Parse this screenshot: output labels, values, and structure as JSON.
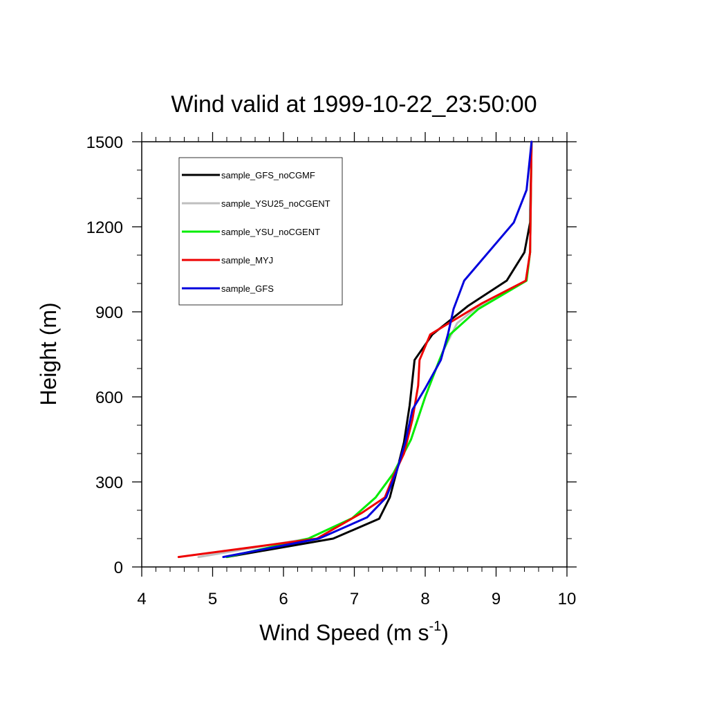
{
  "chart_data": {
    "type": "line",
    "title": "Wind valid at 1999-10-22_23:50:00",
    "xlabel": "Wind Speed (m s",
    "xlabel_sup": "-1",
    "xlabel_end": ")",
    "ylabel": "Height (m)",
    "xlim": [
      4,
      10
    ],
    "ylim": [
      0,
      1500
    ],
    "xticks": [
      4,
      5,
      6,
      7,
      8,
      9,
      10
    ],
    "yticks": [
      0,
      300,
      600,
      900,
      1200,
      1500
    ],
    "xtick_labels": [
      "4",
      "5",
      "6",
      "7",
      "8",
      "9",
      "10"
    ],
    "ytick_labels": [
      "0",
      "300",
      "600",
      "900",
      "1200",
      "1500"
    ],
    "grid": false,
    "legend_position": "top-left",
    "series": [
      {
        "name": "sample_GFS_noCGMF",
        "color": "#000000",
        "points": [
          [
            5.2,
            35
          ],
          [
            6.7,
            100
          ],
          [
            7.35,
            170
          ],
          [
            7.5,
            245
          ],
          [
            7.6,
            340
          ],
          [
            7.7,
            440
          ],
          [
            7.78,
            570
          ],
          [
            7.85,
            730
          ],
          [
            8.1,
            820
          ],
          [
            8.6,
            920
          ],
          [
            9.15,
            1010
          ],
          [
            9.4,
            1110
          ],
          [
            9.48,
            1215
          ],
          [
            9.5,
            1500
          ]
        ]
      },
      {
        "name": "sample_YSU25_noCGENT",
        "color": "#bfbfbf",
        "points": [
          [
            4.8,
            35
          ],
          [
            6.35,
            100
          ],
          [
            6.97,
            172
          ],
          [
            7.3,
            245
          ],
          [
            7.55,
            330
          ],
          [
            7.8,
            450
          ],
          [
            8.0,
            600
          ],
          [
            8.25,
            760
          ],
          [
            8.45,
            860
          ],
          [
            8.7,
            910
          ],
          [
            9.42,
            1010
          ],
          [
            9.48,
            1110
          ],
          [
            9.5,
            1500
          ]
        ]
      },
      {
        "name": "sample_YSU_noCGENT",
        "color": "#00ee00",
        "points": [
          [
            5.2,
            35
          ],
          [
            6.35,
            100
          ],
          [
            6.97,
            172
          ],
          [
            7.3,
            245
          ],
          [
            7.55,
            330
          ],
          [
            7.8,
            450
          ],
          [
            8.0,
            600
          ],
          [
            8.2,
            730
          ],
          [
            8.35,
            820
          ],
          [
            8.75,
            910
          ],
          [
            9.43,
            1010
          ],
          [
            9.48,
            1110
          ],
          [
            9.5,
            1500
          ]
        ]
      },
      {
        "name": "sample_MYJ",
        "color": "#ee0000",
        "points": [
          [
            4.52,
            35
          ],
          [
            6.47,
            100
          ],
          [
            7.1,
            190
          ],
          [
            7.43,
            245
          ],
          [
            7.55,
            320
          ],
          [
            7.7,
            400
          ],
          [
            7.82,
            520
          ],
          [
            7.9,
            640
          ],
          [
            7.92,
            730
          ],
          [
            8.07,
            820
          ],
          [
            8.4,
            870
          ],
          [
            8.8,
            930
          ],
          [
            9.42,
            1010
          ],
          [
            9.48,
            1110
          ],
          [
            9.5,
            1500
          ]
        ]
      },
      {
        "name": "sample_GFS",
        "color": "#0000dd",
        "points": [
          [
            5.15,
            35
          ],
          [
            6.5,
            100
          ],
          [
            7.18,
            175
          ],
          [
            7.45,
            245
          ],
          [
            7.6,
            340
          ],
          [
            7.72,
            440
          ],
          [
            7.82,
            555
          ],
          [
            8.0,
            630
          ],
          [
            8.22,
            730
          ],
          [
            8.32,
            820
          ],
          [
            8.4,
            910
          ],
          [
            8.55,
            1010
          ],
          [
            9.25,
            1215
          ],
          [
            9.43,
            1330
          ],
          [
            9.5,
            1500
          ]
        ]
      }
    ]
  }
}
